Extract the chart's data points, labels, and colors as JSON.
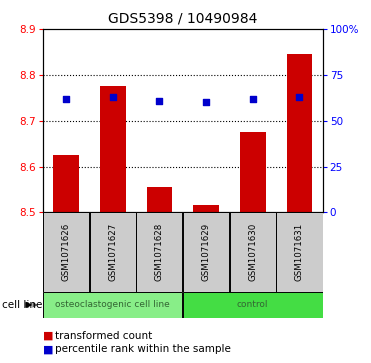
{
  "title": "GDS5398 / 10490984",
  "samples": [
    "GSM1071626",
    "GSM1071627",
    "GSM1071628",
    "GSM1071629",
    "GSM1071630",
    "GSM1071631"
  ],
  "transformed_counts": [
    8.625,
    8.775,
    8.555,
    8.515,
    8.675,
    8.845
  ],
  "percentile_ranks": [
    62,
    63,
    61,
    60,
    62,
    63
  ],
  "ylim_left": [
    8.5,
    8.9
  ],
  "ylim_right": [
    0,
    100
  ],
  "yticks_left": [
    8.5,
    8.6,
    8.7,
    8.8,
    8.9
  ],
  "yticks_right": [
    0,
    25,
    50,
    75,
    100
  ],
  "ytick_labels_right": [
    "0",
    "25",
    "50",
    "75",
    "100%"
  ],
  "bar_color": "#cc0000",
  "dot_color": "#0000cc",
  "bar_bottom": 8.5,
  "groups": [
    {
      "label": "osteoclastogenic cell line",
      "samples": [
        0,
        1,
        2
      ],
      "color": "#88ee88"
    },
    {
      "label": "control",
      "samples": [
        3,
        4,
        5
      ],
      "color": "#44dd44"
    }
  ],
  "cell_line_label": "cell line",
  "legend_bar_label": "transformed count",
  "legend_dot_label": "percentile rank within the sample",
  "label_box_color": "#cccccc"
}
